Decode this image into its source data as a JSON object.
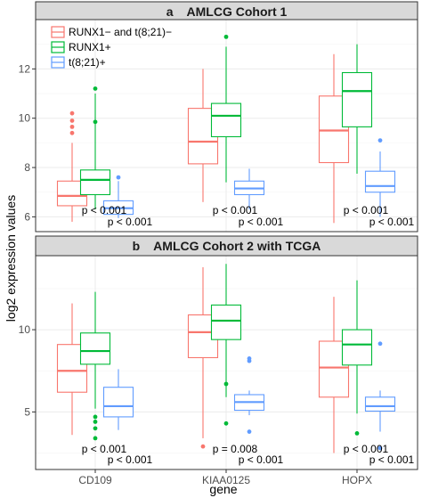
{
  "chart_data": {
    "type": "boxplot",
    "xlabel": "gene",
    "ylabel": "log2 expression values",
    "categories": [
      "CD109",
      "KIAA0125",
      "HOPX"
    ],
    "legend": {
      "placement": "top-left",
      "entries": [
        {
          "name": "RUNX1− and t(8;21)−",
          "color": "#F8766D"
        },
        {
          "name": "RUNX1+",
          "color": "#00BA38"
        },
        {
          "name": "t(8;21)+",
          "color": "#619CFF"
        }
      ]
    },
    "panels": [
      {
        "title": "a    AMLCG Cohort 1",
        "ylim": [
          5.4,
          14.0
        ],
        "yticks": [
          6,
          8,
          10,
          12
        ],
        "groups": [
          {
            "gene": "CD109",
            "boxes": [
              {
                "series": 0,
                "whisker_low": 5.8,
                "q1": 6.45,
                "median": 6.85,
                "q3": 7.45,
                "whisker_high": 9.0,
                "outliers": [
                  9.4,
                  9.65,
                  9.9,
                  10.2
                ]
              },
              {
                "series": 1,
                "whisker_low": 6.3,
                "q1": 6.9,
                "median": 7.5,
                "q3": 7.9,
                "whisker_high": 11.0,
                "outliers": [
                  9.85,
                  11.2
                ]
              },
              {
                "series": 2,
                "whisker_low": 5.95,
                "q1": 6.1,
                "median": 6.35,
                "q3": 6.65,
                "whisker_high": 7.45,
                "outliers": [
                  7.6
                ]
              }
            ],
            "pvalues": [
              "p < 0.001",
              "p < 0.001"
            ]
          },
          {
            "gene": "KIAA0125",
            "boxes": [
              {
                "series": 0,
                "whisker_low": 6.6,
                "q1": 8.15,
                "median": 9.05,
                "q3": 10.4,
                "whisker_high": 12.0,
                "outliers": []
              },
              {
                "series": 1,
                "whisker_low": 7.4,
                "q1": 9.25,
                "median": 10.1,
                "q3": 10.6,
                "whisker_high": 12.9,
                "outliers": [
                  13.3
                ]
              },
              {
                "series": 2,
                "whisker_low": 6.3,
                "q1": 6.9,
                "median": 7.15,
                "q3": 7.45,
                "whisker_high": 7.95,
                "outliers": []
              }
            ],
            "pvalues": [
              "p < 0.001",
              "p < 0.001"
            ]
          },
          {
            "gene": "HOPX",
            "boxes": [
              {
                "series": 0,
                "whisker_low": 5.75,
                "q1": 8.2,
                "median": 9.5,
                "q3": 10.9,
                "whisker_high": 12.6,
                "outliers": []
              },
              {
                "series": 1,
                "whisker_low": 7.75,
                "q1": 9.65,
                "median": 11.1,
                "q3": 11.85,
                "whisker_high": 13.0,
                "outliers": []
              },
              {
                "series": 2,
                "whisker_low": 6.0,
                "q1": 7.0,
                "median": 7.25,
                "q3": 7.85,
                "whisker_high": 8.65,
                "outliers": [
                  9.1
                ]
              }
            ],
            "pvalues": [
              "p < 0.001",
              "p < 0.001"
            ]
          }
        ]
      },
      {
        "title": "b    AMLCG Cohort 2 with TCGA",
        "ylim": [
          1.5,
          14.5
        ],
        "yticks": [
          5,
          10
        ],
        "groups": [
          {
            "gene": "CD109",
            "boxes": [
              {
                "series": 0,
                "whisker_low": 3.6,
                "q1": 6.2,
                "median": 7.5,
                "q3": 9.1,
                "whisker_high": 11.6,
                "outliers": []
              },
              {
                "series": 1,
                "whisker_low": 5.2,
                "q1": 7.9,
                "median": 8.7,
                "q3": 9.8,
                "whisker_high": 12.3,
                "outliers": [
                  3.4,
                  4.0,
                  4.4,
                  4.7
                ]
              },
              {
                "series": 2,
                "whisker_low": 3.9,
                "q1": 4.7,
                "median": 5.35,
                "q3": 6.5,
                "whisker_high": 7.6,
                "outliers": []
              }
            ],
            "pvalues": [
              "p < 0.001",
              "p < 0.001"
            ]
          },
          {
            "gene": "KIAA0125",
            "boxes": [
              {
                "series": 0,
                "whisker_low": 3.4,
                "q1": 8.3,
                "median": 9.85,
                "q3": 10.9,
                "whisker_high": 13.8,
                "outliers": [
                  2.9
                ]
              },
              {
                "series": 1,
                "whisker_low": 5.9,
                "q1": 9.4,
                "median": 10.55,
                "q3": 11.5,
                "whisker_high": 14.0,
                "outliers": [
                  4.3,
                  6.7
                ]
              },
              {
                "series": 2,
                "whisker_low": 4.8,
                "q1": 5.1,
                "median": 5.6,
                "q3": 6.05,
                "whisker_high": 6.3,
                "outliers": [
                  3.8,
                  8.1,
                  8.25
                ]
              }
            ],
            "pvalues": [
              "p = 0.008",
              "p < 0.001"
            ]
          },
          {
            "gene": "HOPX",
            "boxes": [
              {
                "series": 0,
                "whisker_low": 2.5,
                "q1": 5.9,
                "median": 7.7,
                "q3": 9.3,
                "whisker_high": 12.0,
                "outliers": []
              },
              {
                "series": 1,
                "whisker_low": 4.9,
                "q1": 7.85,
                "median": 9.1,
                "q3": 10.0,
                "whisker_high": 13.0,
                "outliers": [
                  3.7
                ]
              },
              {
                "series": 2,
                "whisker_low": 3.8,
                "q1": 5.05,
                "median": 5.35,
                "q3": 5.9,
                "whisker_high": 6.3,
                "outliers": [
                  2.8,
                  9.15
                ]
              }
            ],
            "pvalues": [
              "p < 0.001",
              "p < 0.001"
            ]
          }
        ]
      }
    ]
  }
}
